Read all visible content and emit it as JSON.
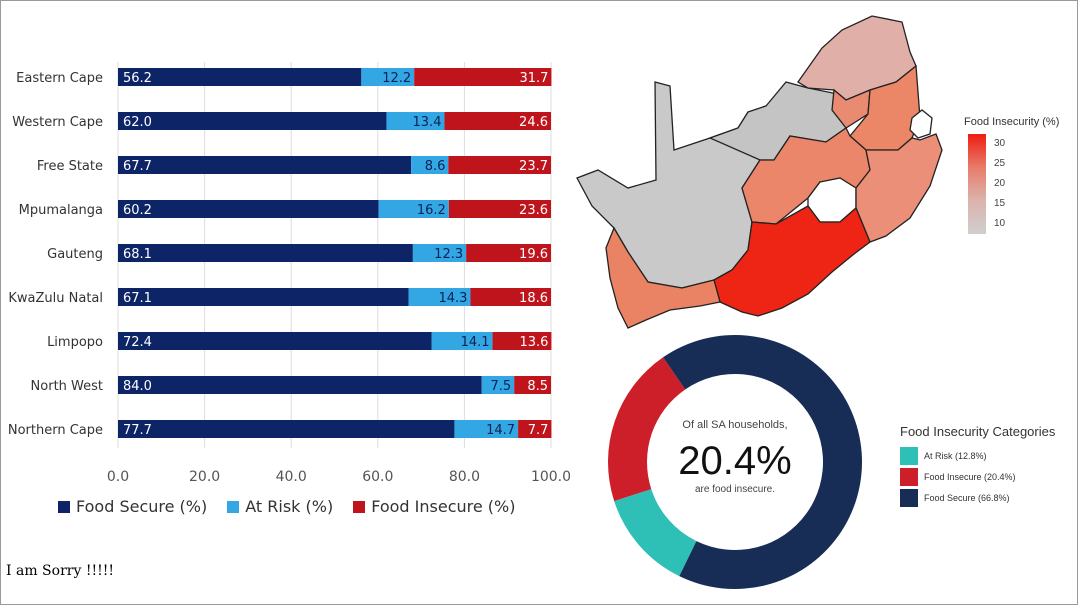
{
  "chart_data": [
    {
      "type": "bar",
      "stacked": true,
      "orientation": "horizontal",
      "categories": [
        "Eastern Cape",
        "Western Cape",
        "Free State",
        "Mpumalanga",
        "Gauteng",
        "KwaZulu Natal",
        "Limpopo",
        "North West",
        "Northern Cape"
      ],
      "series": [
        {
          "name": "Food Secure (%)",
          "color": "#0d2466",
          "values": [
            56.2,
            62.0,
            67.7,
            60.2,
            68.1,
            67.1,
            72.4,
            84.0,
            77.7
          ]
        },
        {
          "name": "At Risk (%)",
          "color": "#33a7e4",
          "values": [
            12.2,
            13.4,
            8.6,
            16.2,
            12.3,
            14.3,
            14.1,
            7.5,
            14.7
          ]
        },
        {
          "name": "Food Insecure (%)",
          "color": "#c0141c",
          "values": [
            31.7,
            24.6,
            23.7,
            23.6,
            19.6,
            18.6,
            13.6,
            8.5,
            7.7
          ]
        }
      ],
      "value_labels": [
        [
          "56.2",
          "12.2",
          "31.7"
        ],
        [
          "62.0",
          "13.4",
          "24.6"
        ],
        [
          "67.7",
          "8.6",
          "23.7"
        ],
        [
          "60.2",
          "16.2",
          "23.6"
        ],
        [
          "68.1",
          "12.3",
          "19.6"
        ],
        [
          "67.1",
          "14.3",
          "18.6"
        ],
        [
          "72.4",
          "14.1",
          "13.6"
        ],
        [
          "84.0",
          "7.5",
          "8.5"
        ],
        [
          "77.7",
          "14.7",
          "7.7"
        ]
      ],
      "xlim": [
        0,
        100
      ],
      "x_ticks": [
        "0.0",
        "20.0",
        "40.0",
        "60.0",
        "80.0",
        "100.0"
      ],
      "grid": true,
      "legend_position": "bottom"
    },
    {
      "type": "map",
      "legend_title": "Food Insecurity (%)",
      "legend_ticks": [
        "30",
        "25",
        "20",
        "15",
        "10"
      ]
    },
    {
      "type": "pie",
      "donut": true,
      "slices": [
        {
          "label": "At Risk (12.8%)",
          "value": 12.8,
          "color": "#2ebfb7"
        },
        {
          "label": "Food Insecure (20.4%)",
          "value": 20.4,
          "color": "#cc1f2a"
        },
        {
          "label": "Food Secure (66.8%)",
          "value": 66.8,
          "color": "#172d55"
        }
      ],
      "center_top": "Of all SA households,",
      "center_value": "20.4%",
      "center_bottom": "are food insecure.",
      "legend_title": "Food Insecurity Categories"
    }
  ],
  "footer": {
    "text": "I am Sorry !!!!!"
  }
}
